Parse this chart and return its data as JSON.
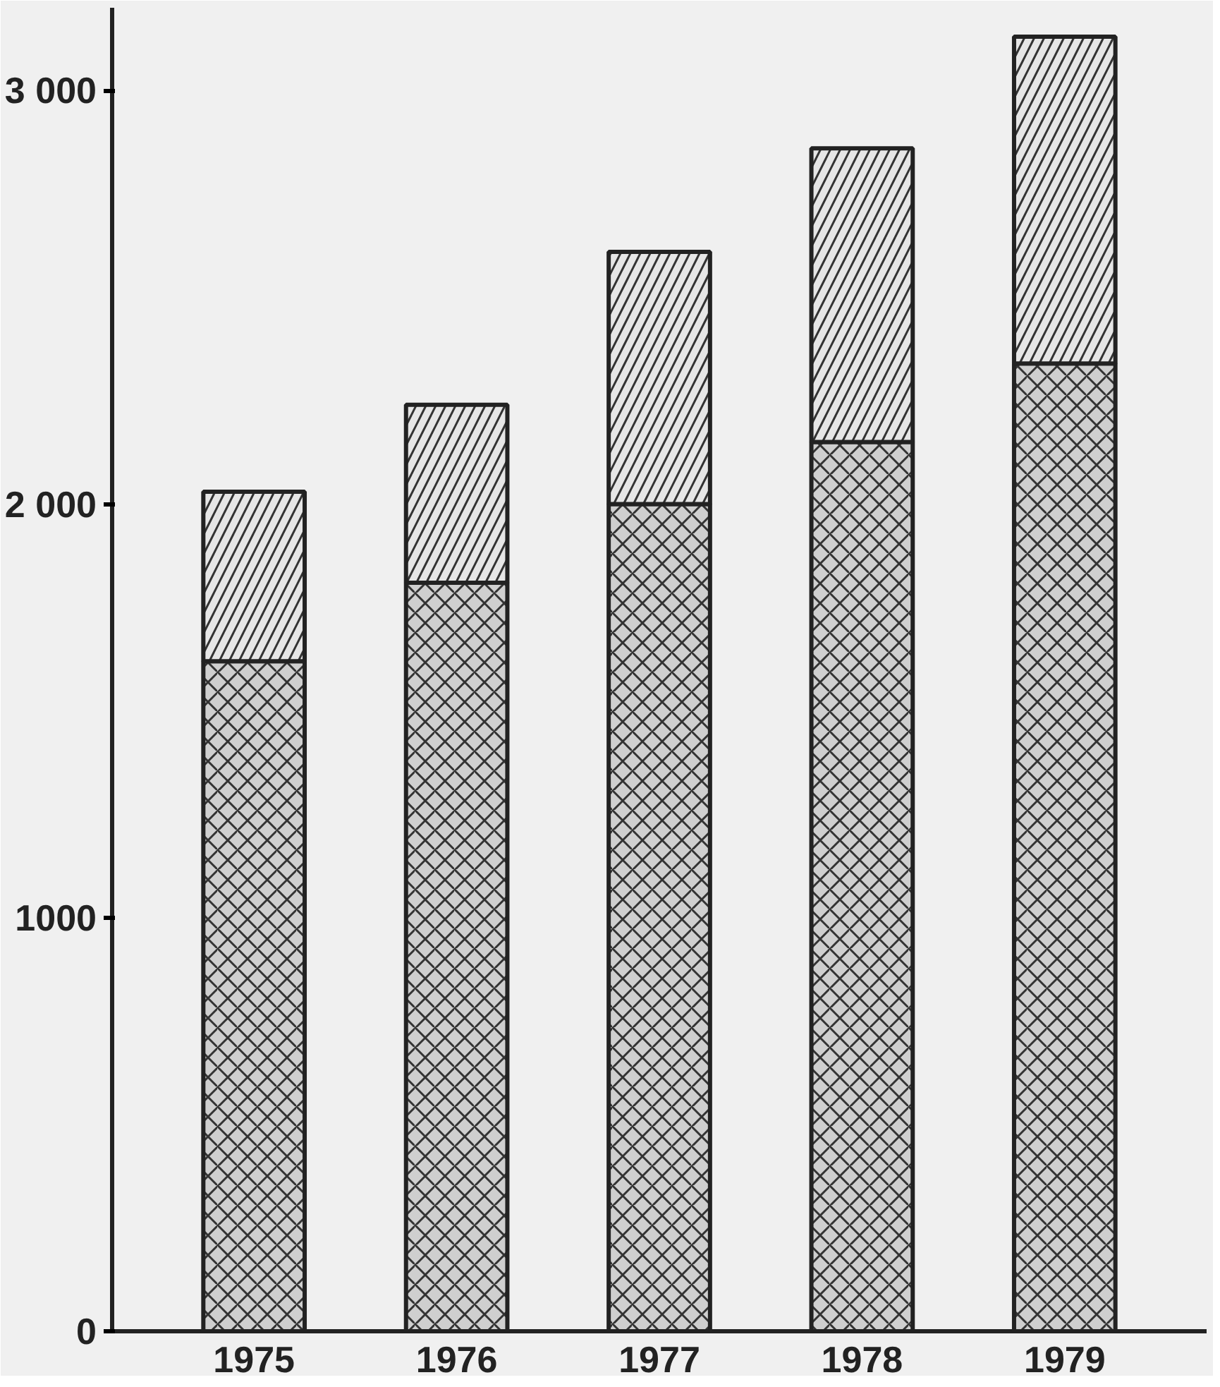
{
  "chart_data": {
    "type": "bar",
    "stacked": true,
    "categories": [
      "1975",
      "1976",
      "1977",
      "1978",
      "1979"
    ],
    "series": [
      {
        "color": "#cfcfcf",
        "values": [
          1620,
          1810,
          2000,
          2150,
          2340
        ]
      },
      {
        "color": "#e6e6e6",
        "values": [
          410,
          430,
          610,
          710,
          790
        ]
      }
    ],
    "ylim": [
      0,
      3200
    ],
    "yticks": [
      0,
      1000,
      {
        "value": 2000,
        "label": "2 000"
      },
      {
        "value": 3000,
        "label": "3 000"
      }
    ],
    "grid": false
  }
}
